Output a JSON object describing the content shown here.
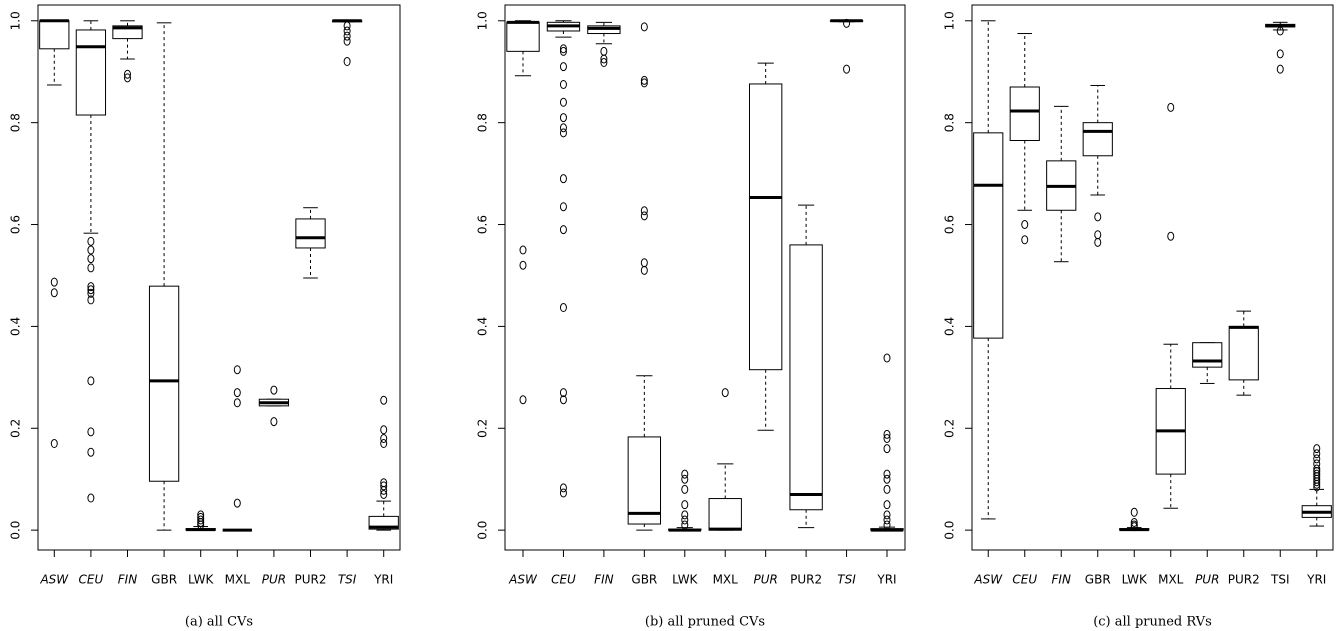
{
  "chart_data": [
    {
      "type": "box",
      "caption": "(a) all CVs",
      "ylim": [
        -0.039,
        1.031
      ],
      "yticks": [
        {
          "value": 0,
          "label": "0.0"
        },
        0.2,
        0.4,
        0.6,
        0.8,
        {
          "value": 1,
          "label": "1.0"
        }
      ],
      "categories": [
        "ASW",
        "CEU",
        "FIN",
        "GBR",
        "LWK",
        "MXL",
        "PUR",
        "PUR2",
        "TSI",
        "YRI"
      ],
      "category_colors": [
        "#e0302a",
        "#e0302a",
        "#e0302a",
        "#000000",
        "#000000",
        "#000000",
        "#e0302a",
        "#000000",
        "#e0302a",
        "#000000"
      ],
      "category_italic": [
        true,
        true,
        true,
        false,
        false,
        false,
        true,
        false,
        true,
        false
      ],
      "boxes": [
        {
          "whislo": 0.874,
          "q1": 0.945,
          "med": 1.0,
          "q3": 1.0,
          "whishi": 1.0,
          "fliers": [
            0.487,
            0.466,
            0.17
          ]
        },
        {
          "whislo": 0.583,
          "q1": 0.815,
          "med": 0.949,
          "q3": 0.982,
          "whishi": 1.0,
          "fliers": [
            0.567,
            0.55,
            0.533,
            0.515,
            0.478,
            0.472,
            0.465,
            0.452,
            0.293,
            0.193,
            0.153,
            0.063
          ]
        },
        {
          "whislo": 0.925,
          "q1": 0.965,
          "med": 0.986,
          "q3": 0.99,
          "whishi": 1.0,
          "fliers": [
            0.895,
            0.888
          ]
        },
        {
          "whislo": 0,
          "q1": 0.096,
          "med": 0.293,
          "q3": 0.479,
          "whishi": 0.996,
          "fliers": []
        },
        {
          "whislo": 0,
          "q1": 0,
          "med": 0.001,
          "q3": 0.003,
          "whishi": 0.007,
          "fliers": [
            0.01,
            0.015,
            0.02,
            0.025,
            0.03
          ]
        },
        {
          "whislo": 0,
          "q1": 0,
          "med": 0,
          "q3": 0,
          "whishi": 0,
          "fliers": [
            0.315,
            0.27,
            0.25,
            0.053
          ]
        },
        {
          "whislo": 0.244,
          "q1": 0.244,
          "med": 0.25,
          "q3": 0.257,
          "whishi": 0.257,
          "fliers": [
            0.275,
            0.213
          ]
        },
        {
          "whislo": 0.495,
          "q1": 0.554,
          "med": 0.574,
          "q3": 0.611,
          "whishi": 0.633,
          "fliers": []
        },
        {
          "whislo": 0.998,
          "q1": 0.998,
          "med": 1.0,
          "q3": 1.0,
          "whishi": 1.0,
          "fliers": [
            0.99,
            0.98,
            0.97,
            0.96,
            0.92
          ]
        },
        {
          "whislo": 0,
          "q1": 0.002,
          "med": 0.006,
          "q3": 0.027,
          "whishi": 0.057,
          "fliers": [
            0.255,
            0.197,
            0.18,
            0.17,
            0.093,
            0.087,
            0.078,
            0.07
          ]
        }
      ]
    },
    {
      "type": "box",
      "caption": "(b) all pruned CVs",
      "ylim": [
        -0.039,
        1.031
      ],
      "yticks": [
        {
          "value": 0,
          "label": "0.0"
        },
        0.2,
        0.4,
        0.6,
        0.8,
        {
          "value": 1,
          "label": "1.0"
        }
      ],
      "categories": [
        "ASW",
        "CEU",
        "FIN",
        "GBR",
        "LWK",
        "MXL",
        "PUR",
        "PUR2",
        "TSI",
        "YRI"
      ],
      "category_colors": [
        "#e0302a",
        "#e0302a",
        "#e0302a",
        "#000000",
        "#000000",
        "#000000",
        "#e0302a",
        "#000000",
        "#e0302a",
        "#000000"
      ],
      "category_italic": [
        true,
        true,
        true,
        false,
        false,
        false,
        true,
        false,
        true,
        false
      ],
      "boxes": [
        {
          "whislo": 0.892,
          "q1": 0.94,
          "med": 0.997,
          "q3": 0.997,
          "whishi": 1.0,
          "fliers": [
            0.55,
            0.52,
            0.256
          ]
        },
        {
          "whislo": 0.968,
          "q1": 0.98,
          "med": 0.99,
          "q3": 0.997,
          "whishi": 1.0,
          "fliers": [
            0.945,
            0.94,
            0.91,
            0.875,
            0.84,
            0.81,
            0.79,
            0.78,
            0.69,
            0.635,
            0.59,
            0.437,
            0.27,
            0.256,
            0.083,
            0.073
          ]
        },
        {
          "whislo": 0.955,
          "q1": 0.975,
          "med": 0.985,
          "q3": 0.99,
          "whishi": 0.997,
          "fliers": [
            0.94,
            0.925,
            0.918
          ]
        },
        {
          "whislo": 0,
          "q1": 0.012,
          "med": 0.033,
          "q3": 0.183,
          "whishi": 0.303,
          "fliers": [
            0.988,
            0.883,
            0.878,
            0.627,
            0.617,
            0.525,
            0.51
          ]
        },
        {
          "whislo": 0,
          "q1": 0,
          "med": 0,
          "q3": 0.002,
          "whishi": 0.005,
          "fliers": [
            0.11,
            0.1,
            0.08,
            0.05,
            0.03,
            0.02,
            0.01
          ]
        },
        {
          "whislo": 0,
          "q1": 0,
          "med": 0.002,
          "q3": 0.062,
          "whishi": 0.13,
          "fliers": [
            0.27
          ]
        },
        {
          "whislo": 0.196,
          "q1": 0.315,
          "med": 0.653,
          "q3": 0.876,
          "whishi": 0.917,
          "fliers": []
        },
        {
          "whislo": 0.005,
          "q1": 0.04,
          "med": 0.07,
          "q3": 0.56,
          "whishi": 0.638,
          "fliers": []
        },
        {
          "whislo": 0.998,
          "q1": 0.999,
          "med": 1.0,
          "q3": 1.0,
          "whishi": 1.0,
          "fliers": [
            0.995,
            0.905
          ]
        },
        {
          "whislo": 0,
          "q1": 0,
          "med": 0,
          "q3": 0.003,
          "whishi": 0.006,
          "fliers": [
            0.338,
            0.188,
            0.18,
            0.16,
            0.11,
            0.1,
            0.08,
            0.05,
            0.03,
            0.02,
            0.01
          ]
        }
      ]
    },
    {
      "type": "box",
      "caption": "(c) all pruned RVs",
      "ylim": [
        -0.039,
        1.031
      ],
      "yticks": [
        {
          "value": 0,
          "label": "0.0"
        },
        0.2,
        0.4,
        0.6,
        0.8,
        {
          "value": 1,
          "label": "1.0"
        }
      ],
      "categories": [
        "ASW",
        "CEU",
        "FIN",
        "GBR",
        "LWK",
        "MXL",
        "PUR",
        "PUR2",
        "TSI",
        "YRI"
      ],
      "category_colors": [
        "#e0302a",
        "#e0302a",
        "#e0302a",
        "#000000",
        "#000000",
        "#000000",
        "#e0302a",
        "#000000",
        "#e0302a",
        "#000000"
      ],
      "category_italic": [
        true,
        true,
        true,
        false,
        false,
        false,
        true,
        false,
        false,
        false
      ],
      "boxes": [
        {
          "whislo": 0.022,
          "q1": 0.377,
          "med": 0.677,
          "q3": 0.78,
          "whishi": 1.0,
          "fliers": []
        },
        {
          "whislo": 0.628,
          "q1": 0.765,
          "med": 0.823,
          "q3": 0.87,
          "whishi": 0.975,
          "fliers": [
            0.6,
            0.57
          ]
        },
        {
          "whislo": 0.527,
          "q1": 0.628,
          "med": 0.675,
          "q3": 0.725,
          "whishi": 0.832,
          "fliers": []
        },
        {
          "whislo": 0.658,
          "q1": 0.735,
          "med": 0.783,
          "q3": 0.8,
          "whishi": 0.873,
          "fliers": [
            0.615,
            0.58,
            0.565
          ]
        },
        {
          "whislo": 0,
          "q1": 0,
          "med": 0.001,
          "q3": 0.003,
          "whishi": 0.005,
          "fliers": [
            0.035,
            0.015,
            0.01,
            0.007
          ]
        },
        {
          "whislo": 0.043,
          "q1": 0.11,
          "med": 0.195,
          "q3": 0.278,
          "whishi": 0.365,
          "fliers": [
            0.83,
            0.577
          ]
        },
        {
          "whislo": 0.288,
          "q1": 0.32,
          "med": 0.332,
          "q3": 0.368,
          "whishi": 0.368,
          "fliers": []
        },
        {
          "whislo": 0.265,
          "q1": 0.295,
          "med": 0.398,
          "q3": 0.4,
          "whishi": 0.43,
          "fliers": []
        },
        {
          "whislo": 0.982,
          "q1": 0.988,
          "med": 0.99,
          "q3": 0.993,
          "whishi": 0.997,
          "fliers": [
            0.98,
            0.935,
            0.905
          ]
        },
        {
          "whislo": 0.008,
          "q1": 0.025,
          "med": 0.035,
          "q3": 0.048,
          "whishi": 0.08,
          "fliers": [
            0.16,
            0.15,
            0.14,
            0.13,
            0.12,
            0.115,
            0.11,
            0.105,
            0.1,
            0.095,
            0.09,
            0.085
          ]
        }
      ]
    }
  ]
}
